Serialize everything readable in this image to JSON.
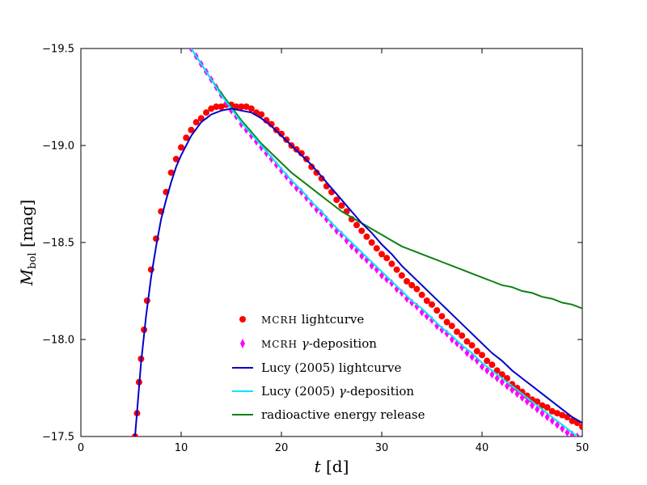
{
  "chart_data": {
    "type": "line",
    "xlabel_var": "t",
    "xlabel_unit": "[d]",
    "ylabel_var": "M",
    "ylabel_sub": "bol",
    "ylabel_unit": "[mag]",
    "xlim": [
      0,
      50
    ],
    "ylim": [
      -17.5,
      -19.5
    ],
    "y_inverted": true,
    "x_ticks": [
      0,
      10,
      20,
      30,
      40,
      50
    ],
    "x_tick_labels": [
      "0",
      "10",
      "20",
      "30",
      "40",
      "50"
    ],
    "y_ticks": [
      -19.5,
      -19.0,
      -18.5,
      -18.0,
      -17.5
    ],
    "y_tick_labels": [
      "−19.5",
      "−19.0",
      "−18.5",
      "−18.0",
      "−17.5"
    ],
    "grid": false,
    "legend_position": "bottom-center",
    "series": [
      {
        "name": "MCRH lightcurve",
        "legend_label": "lightcurve",
        "legend_prefix": "MCRH",
        "kind": "scatter",
        "marker": "circle",
        "color": "#ff0000",
        "x": [
          5.4,
          5.6,
          5.8,
          6.0,
          6.3,
          6.6,
          7.0,
          7.5,
          8.0,
          8.5,
          9.0,
          9.5,
          10.0,
          10.5,
          11.0,
          11.5,
          12.0,
          12.5,
          13.0,
          13.5,
          14.0,
          14.5,
          15.0,
          15.5,
          16.0,
          16.5,
          17.0,
          17.5,
          18.0,
          18.5,
          19.0,
          19.5,
          20.0,
          20.5,
          21.0,
          21.5,
          22.0,
          22.5,
          23.0,
          23.5,
          24.0,
          24.5,
          25.0,
          25.5,
          26.0,
          26.5,
          27.0,
          27.5,
          28.0,
          28.5,
          29.0,
          29.5,
          30.0,
          30.5,
          31.0,
          31.5,
          32.0,
          32.5,
          33.0,
          33.5,
          34.0,
          34.5,
          35.0,
          35.5,
          36.0,
          36.5,
          37.0,
          37.5,
          38.0,
          38.5,
          39.0,
          39.5,
          40.0,
          40.5,
          41.0,
          41.5,
          42.0,
          42.5,
          43.0,
          43.5,
          44.0,
          44.5,
          45.0,
          45.5,
          46.0,
          46.5,
          47.0,
          47.5,
          48.0,
          48.5,
          49.0,
          49.5,
          50.0
        ],
        "y": [
          -17.5,
          -17.62,
          -17.78,
          -17.9,
          -18.05,
          -18.2,
          -18.36,
          -18.52,
          -18.66,
          -18.76,
          -18.86,
          -18.93,
          -18.99,
          -19.04,
          -19.08,
          -19.12,
          -19.14,
          -19.17,
          -19.19,
          -19.2,
          -19.2,
          -19.21,
          -19.21,
          -19.2,
          -19.2,
          -19.2,
          -19.19,
          -19.17,
          -19.16,
          -19.13,
          -19.11,
          -19.08,
          -19.06,
          -19.03,
          -19.0,
          -18.98,
          -18.96,
          -18.93,
          -18.89,
          -18.86,
          -18.83,
          -18.79,
          -18.76,
          -18.72,
          -18.69,
          -18.66,
          -18.62,
          -18.59,
          -18.56,
          -18.53,
          -18.5,
          -18.47,
          -18.44,
          -18.42,
          -18.39,
          -18.36,
          -18.33,
          -18.3,
          -18.28,
          -18.26,
          -18.23,
          -18.2,
          -18.18,
          -18.15,
          -18.12,
          -18.09,
          -18.07,
          -18.04,
          -18.02,
          -17.99,
          -17.97,
          -17.94,
          -17.92,
          -17.89,
          -17.87,
          -17.84,
          -17.82,
          -17.8,
          -17.77,
          -17.75,
          -17.73,
          -17.71,
          -17.69,
          -17.68,
          -17.66,
          -17.65,
          -17.63,
          -17.62,
          -17.61,
          -17.6,
          -17.58,
          -17.57,
          -17.55
        ]
      },
      {
        "name": "MCRH gamma-deposition",
        "legend_label": "-deposition",
        "legend_prefix": "MCRH",
        "legend_symbol": "γ",
        "kind": "scatter",
        "marker": "diamond",
        "color": "#ff00ff",
        "x": [
          11.0,
          11.5,
          12.0,
          12.5,
          13.0,
          13.5,
          14.0,
          14.5,
          15.0,
          15.5,
          16.0,
          16.5,
          17.0,
          17.5,
          18.0,
          18.5,
          19.0,
          19.5,
          20.0,
          20.5,
          21.0,
          21.5,
          22.0,
          22.5,
          23.0,
          23.5,
          24.0,
          24.5,
          25.0,
          25.5,
          26.0,
          26.5,
          27.0,
          27.5,
          28.0,
          28.5,
          29.0,
          29.5,
          30.0,
          30.5,
          31.0,
          31.5,
          32.0,
          32.5,
          33.0,
          33.5,
          34.0,
          34.5,
          35.0,
          35.5,
          36.0,
          36.5,
          37.0,
          37.5,
          38.0,
          38.5,
          39.0,
          39.5,
          40.0,
          40.5,
          41.0,
          41.5,
          42.0,
          42.5,
          43.0,
          43.5,
          44.0,
          44.5,
          45.0,
          45.5,
          46.0,
          46.5,
          47.0,
          47.5,
          48.0,
          48.5,
          49.0,
          49.5,
          50.0
        ],
        "y": [
          -19.5,
          -19.46,
          -19.42,
          -19.38,
          -19.34,
          -19.3,
          -19.26,
          -19.22,
          -19.18,
          -19.15,
          -19.11,
          -19.08,
          -19.05,
          -19.02,
          -18.99,
          -18.96,
          -18.93,
          -18.9,
          -18.87,
          -18.84,
          -18.81,
          -18.78,
          -18.76,
          -18.73,
          -18.7,
          -18.67,
          -18.65,
          -18.62,
          -18.59,
          -18.56,
          -18.54,
          -18.51,
          -18.48,
          -18.46,
          -18.43,
          -18.41,
          -18.38,
          -18.36,
          -18.33,
          -18.31,
          -18.29,
          -18.26,
          -18.24,
          -18.21,
          -18.19,
          -18.17,
          -18.14,
          -18.12,
          -18.1,
          -18.07,
          -18.05,
          -18.03,
          -18.0,
          -17.98,
          -17.96,
          -17.93,
          -17.91,
          -17.89,
          -17.86,
          -17.84,
          -17.82,
          -17.8,
          -17.78,
          -17.76,
          -17.74,
          -17.72,
          -17.7,
          -17.68,
          -17.66,
          -17.64,
          -17.62,
          -17.6,
          -17.58,
          -17.56,
          -17.54,
          -17.52,
          -17.51,
          -17.5,
          -17.49
        ]
      },
      {
        "name": "Lucy (2005) lightcurve",
        "legend_label": "Lucy (2005) lightcurve",
        "kind": "line",
        "color": "#0000cc",
        "x": [
          5.4,
          6.0,
          6.5,
          7.0,
          7.5,
          8.0,
          8.5,
          9.0,
          9.5,
          10.0,
          11.0,
          12.0,
          13.0,
          14.0,
          15.0,
          16.0,
          17.0,
          18.0,
          19.0,
          20.0,
          21.0,
          22.0,
          23.0,
          24.0,
          25.0,
          26.0,
          27.0,
          28.0,
          29.0,
          30.0,
          31.0,
          32.0,
          33.0,
          34.0,
          35.0,
          36.0,
          37.0,
          38.0,
          39.0,
          40.0,
          41.0,
          42.0,
          43.0,
          44.0,
          45.0,
          46.0,
          47.0,
          48.0,
          49.0,
          50.0
        ],
        "y": [
          -17.5,
          -17.88,
          -18.12,
          -18.32,
          -18.48,
          -18.62,
          -18.72,
          -18.81,
          -18.89,
          -18.95,
          -19.05,
          -19.12,
          -19.16,
          -19.18,
          -19.19,
          -19.18,
          -19.17,
          -19.14,
          -19.1,
          -19.05,
          -19.0,
          -18.95,
          -18.9,
          -18.84,
          -18.78,
          -18.72,
          -18.66,
          -18.6,
          -18.55,
          -18.49,
          -18.44,
          -18.38,
          -18.33,
          -18.28,
          -18.23,
          -18.18,
          -18.13,
          -18.08,
          -18.03,
          -17.98,
          -17.93,
          -17.89,
          -17.84,
          -17.8,
          -17.76,
          -17.72,
          -17.68,
          -17.64,
          -17.6,
          -17.57
        ]
      },
      {
        "name": "Lucy (2005) gamma-deposition",
        "legend_label": "-deposition",
        "legend_prefix_plain": "Lucy (2005) ",
        "legend_symbol": "γ",
        "kind": "line",
        "color": "#00e5ff",
        "x": [
          11.0,
          12.0,
          13.0,
          14.0,
          15.0,
          16.0,
          17.0,
          18.0,
          19.0,
          20.0,
          21.0,
          22.0,
          23.0,
          24.0,
          25.0,
          26.0,
          27.0,
          28.0,
          29.0,
          30.0,
          31.0,
          32.0,
          33.0,
          34.0,
          35.0,
          36.0,
          37.0,
          38.0,
          39.0,
          40.0,
          41.0,
          42.0,
          43.0,
          44.0,
          45.0,
          46.0,
          47.0,
          48.0,
          49.0,
          50.0
        ],
        "y": [
          -19.5,
          -19.42,
          -19.34,
          -19.26,
          -19.19,
          -19.12,
          -19.06,
          -19.0,
          -18.94,
          -18.88,
          -18.82,
          -18.77,
          -18.71,
          -18.66,
          -18.6,
          -18.55,
          -18.5,
          -18.45,
          -18.4,
          -18.35,
          -18.3,
          -18.25,
          -18.2,
          -18.16,
          -18.11,
          -18.06,
          -18.02,
          -17.97,
          -17.93,
          -17.88,
          -17.84,
          -17.8,
          -17.76,
          -17.72,
          -17.68,
          -17.64,
          -17.6,
          -17.56,
          -17.52,
          -17.48
        ]
      },
      {
        "name": "radioactive energy release",
        "legend_label": "radioactive energy release",
        "kind": "line",
        "color": "#118011",
        "x": [
          11.0,
          12.0,
          13.0,
          14.0,
          15.0,
          16.0,
          17.0,
          18.0,
          19.0,
          20.0,
          21.0,
          22.0,
          23.0,
          24.0,
          25.0,
          26.0,
          27.0,
          28.0,
          29.0,
          30.0,
          31.0,
          32.0,
          33.0,
          34.0,
          35.0,
          36.0,
          37.0,
          38.0,
          39.0,
          40.0,
          41.0,
          42.0,
          43.0,
          44.0,
          45.0,
          46.0,
          47.0,
          48.0,
          49.0,
          50.0
        ],
        "y": [
          -19.5,
          -19.42,
          -19.34,
          -19.27,
          -19.2,
          -19.13,
          -19.07,
          -19.01,
          -18.96,
          -18.91,
          -18.86,
          -18.82,
          -18.78,
          -18.74,
          -18.7,
          -18.66,
          -18.63,
          -18.6,
          -18.57,
          -18.54,
          -18.51,
          -18.48,
          -18.46,
          -18.44,
          -18.42,
          -18.4,
          -18.38,
          -18.36,
          -18.34,
          -18.32,
          -18.3,
          -18.28,
          -18.27,
          -18.25,
          -18.24,
          -18.22,
          -18.21,
          -18.19,
          -18.18,
          -18.16
        ]
      }
    ]
  }
}
